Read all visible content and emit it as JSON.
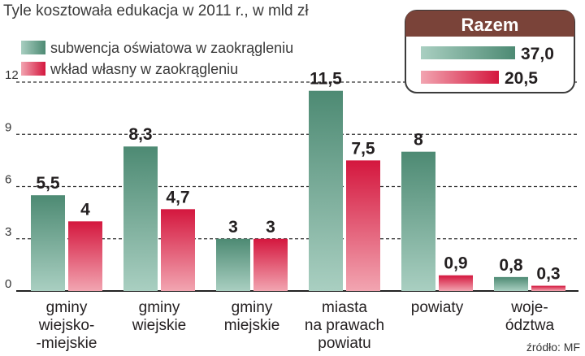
{
  "chart_data": {
    "type": "bar",
    "title": "Tyle kosztowała edukacja w 2011 r., w mld zł",
    "categories": [
      [
        "gminy",
        "wiejsko-",
        "-miejskie"
      ],
      [
        "gminy",
        "wiejskie"
      ],
      [
        "gminy",
        "miejskie"
      ],
      [
        "miasta",
        "na prawach",
        "powiatu"
      ],
      [
        "powiaty"
      ],
      [
        "woje-",
        "ództwa"
      ]
    ],
    "series": [
      {
        "name": "subwencja oświatowa w zaokrągleniu",
        "values": [
          5.5,
          8.3,
          3,
          11.5,
          8,
          0.8
        ],
        "labels": [
          "5,5",
          "8,3",
          "3",
          "11,5",
          "8",
          "0,8"
        ],
        "color": "#4f8f77"
      },
      {
        "name": "wkład własny w zaokrągleniu",
        "values": [
          4,
          4.7,
          3,
          7.5,
          0.9,
          0.3
        ],
        "labels": [
          "4",
          "4,7",
          "3",
          "7,5",
          "0,9",
          "0,3"
        ],
        "color": "#d61f45"
      }
    ],
    "yticks": [
      "0",
      "3",
      "6",
      "9",
      "12"
    ],
    "ylim": [
      0,
      12
    ],
    "grid": true,
    "legend_position": "top-left",
    "xlabel": "",
    "ylabel": ""
  },
  "totals": {
    "title": "Razem",
    "items": [
      {
        "value": "37,0",
        "color": "#4f8f77"
      },
      {
        "value": "20,5",
        "color": "#d61f45"
      }
    ]
  },
  "source": "źródło: MF",
  "colors": {
    "green": "#4f8f77",
    "red": "#d61f45",
    "box_header": "#7a4339",
    "grid": "#333333"
  }
}
